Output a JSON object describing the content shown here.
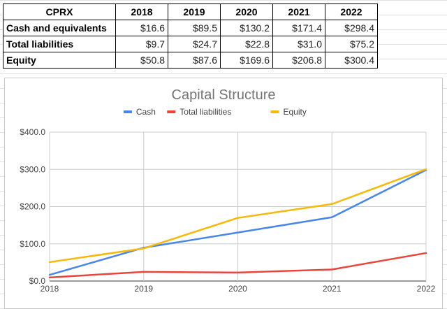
{
  "table": {
    "corner": "CPRX",
    "years": [
      "2018",
      "2019",
      "2020",
      "2021",
      "2022"
    ],
    "rows": [
      {
        "label": "Cash and equivalents",
        "values": [
          "$16.6",
          "$89.5",
          "$130.2",
          "$171.4",
          "$298.4"
        ]
      },
      {
        "label": "Total liabilities",
        "values": [
          "$9.7",
          "$24.7",
          "$22.8",
          "$31.0",
          "$75.2"
        ]
      },
      {
        "label": "Equity",
        "values": [
          "$50.8",
          "$87.6",
          "$169.6",
          "$206.8",
          "$300.4"
        ]
      }
    ]
  },
  "chart_data": {
    "type": "line",
    "title": "Capital Structure",
    "xlabel": "",
    "ylabel": "",
    "categories": [
      "2018",
      "2019",
      "2020",
      "2021",
      "2022"
    ],
    "ylim": [
      0,
      400
    ],
    "yticks": [
      "$0.0",
      "$100.0",
      "$200.0",
      "$300.0",
      "$400.0"
    ],
    "grid": true,
    "legend_position": "top",
    "series": [
      {
        "name": "Cash",
        "color": "#4a86e8",
        "values": [
          16.6,
          89.5,
          130.2,
          171.4,
          298.4
        ]
      },
      {
        "name": "Total liabilities",
        "color": "#e8453c",
        "values": [
          9.7,
          24.7,
          22.8,
          31.0,
          75.2
        ]
      },
      {
        "name": "Equity",
        "color": "#f6b809",
        "values": [
          50.8,
          87.6,
          169.6,
          206.8,
          300.4
        ]
      }
    ]
  }
}
